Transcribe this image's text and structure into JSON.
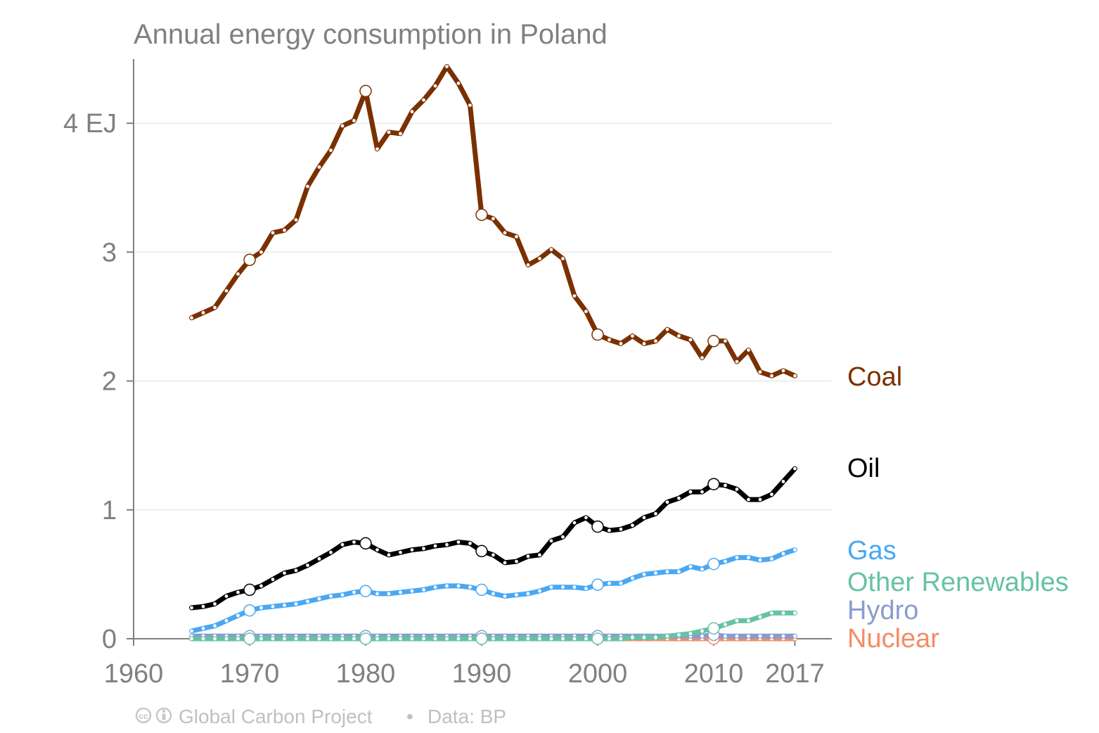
{
  "chart_data": {
    "type": "line",
    "title": "Annual energy consumption in Poland",
    "xlabel": "",
    "ylabel": "",
    "unit": "EJ",
    "xlim": [
      1960,
      2017
    ],
    "ylim": [
      0,
      4.5
    ],
    "x_ticks": [
      1960,
      1970,
      1980,
      1990,
      2000,
      2010,
      2017
    ],
    "x_tick_labels": [
      "1960",
      "1970",
      "1980",
      "1990",
      "2000",
      "2010",
      "2017"
    ],
    "y_ticks": [
      0,
      1,
      2,
      3,
      4
    ],
    "y_tick_labels": [
      "0",
      "1",
      "2",
      "3",
      "4 EJ"
    ],
    "grid": "horizontal",
    "legend": "right-end labels",
    "x": [
      1965,
      1966,
      1967,
      1968,
      1969,
      1970,
      1971,
      1972,
      1973,
      1974,
      1975,
      1976,
      1977,
      1978,
      1979,
      1980,
      1981,
      1982,
      1983,
      1984,
      1985,
      1986,
      1987,
      1988,
      1989,
      1990,
      1991,
      1992,
      1993,
      1994,
      1995,
      1996,
      1997,
      1998,
      1999,
      2000,
      2001,
      2002,
      2003,
      2004,
      2005,
      2006,
      2007,
      2008,
      2009,
      2010,
      2011,
      2012,
      2013,
      2014,
      2015,
      2016,
      2017
    ],
    "series": [
      {
        "name": "Coal",
        "color": "#7a3000",
        "values": [
          2.49,
          2.53,
          2.57,
          2.7,
          2.83,
          2.94,
          3.0,
          3.15,
          3.17,
          3.25,
          3.51,
          3.66,
          3.79,
          3.98,
          4.02,
          4.25,
          3.8,
          3.93,
          3.92,
          4.09,
          4.18,
          4.29,
          4.44,
          4.31,
          4.14,
          3.29,
          3.26,
          3.15,
          3.12,
          2.9,
          2.95,
          3.02,
          2.95,
          2.66,
          2.54,
          2.36,
          2.32,
          2.29,
          2.35,
          2.29,
          2.31,
          2.4,
          2.35,
          2.32,
          2.18,
          2.31,
          2.31,
          2.15,
          2.24,
          2.07,
          2.04,
          2.08,
          2.04
        ]
      },
      {
        "name": "Oil",
        "color": "#000000",
        "values": [
          0.24,
          0.25,
          0.27,
          0.33,
          0.36,
          0.38,
          0.41,
          0.46,
          0.51,
          0.53,
          0.57,
          0.62,
          0.67,
          0.73,
          0.75,
          0.74,
          0.69,
          0.65,
          0.67,
          0.69,
          0.7,
          0.72,
          0.73,
          0.75,
          0.74,
          0.68,
          0.65,
          0.59,
          0.6,
          0.64,
          0.65,
          0.76,
          0.79,
          0.9,
          0.94,
          0.87,
          0.84,
          0.85,
          0.88,
          0.94,
          0.97,
          1.06,
          1.09,
          1.14,
          1.14,
          1.2,
          1.19,
          1.16,
          1.08,
          1.08,
          1.12,
          1.22,
          1.32
        ]
      },
      {
        "name": "Gas",
        "color": "#4aa8f3",
        "values": [
          0.06,
          0.08,
          0.1,
          0.14,
          0.18,
          0.22,
          0.24,
          0.25,
          0.26,
          0.27,
          0.29,
          0.31,
          0.33,
          0.34,
          0.36,
          0.37,
          0.35,
          0.35,
          0.36,
          0.37,
          0.38,
          0.4,
          0.41,
          0.41,
          0.4,
          0.38,
          0.35,
          0.33,
          0.34,
          0.35,
          0.37,
          0.4,
          0.4,
          0.4,
          0.39,
          0.42,
          0.43,
          0.43,
          0.47,
          0.5,
          0.51,
          0.52,
          0.52,
          0.56,
          0.54,
          0.58,
          0.6,
          0.63,
          0.63,
          0.61,
          0.62,
          0.66,
          0.69
        ]
      },
      {
        "name": "Other Renewables",
        "color": "#66c2a4",
        "values": [
          0.0,
          0.0,
          0.0,
          0.0,
          0.0,
          0.0,
          0.0,
          0.0,
          0.0,
          0.0,
          0.0,
          0.0,
          0.0,
          0.0,
          0.0,
          0.0,
          0.0,
          0.0,
          0.0,
          0.0,
          0.0,
          0.0,
          0.0,
          0.0,
          0.0,
          0.0,
          0.0,
          0.0,
          0.0,
          0.0,
          0.0,
          0.0,
          0.0,
          0.0,
          0.0,
          0.0,
          0.0,
          0.0,
          0.01,
          0.01,
          0.01,
          0.02,
          0.03,
          0.04,
          0.06,
          0.08,
          0.11,
          0.14,
          0.14,
          0.17,
          0.2,
          0.2,
          0.2
        ]
      },
      {
        "name": "Hydro",
        "color": "#8a9bd0",
        "values": [
          0.02,
          0.02,
          0.02,
          0.02,
          0.02,
          0.02,
          0.02,
          0.02,
          0.02,
          0.02,
          0.02,
          0.02,
          0.02,
          0.02,
          0.02,
          0.02,
          0.02,
          0.02,
          0.02,
          0.02,
          0.02,
          0.02,
          0.02,
          0.02,
          0.02,
          0.02,
          0.02,
          0.02,
          0.02,
          0.02,
          0.02,
          0.02,
          0.02,
          0.02,
          0.02,
          0.02,
          0.02,
          0.02,
          0.02,
          0.02,
          0.02,
          0.02,
          0.02,
          0.02,
          0.02,
          0.03,
          0.02,
          0.02,
          0.02,
          0.02,
          0.02,
          0.02,
          0.02
        ]
      },
      {
        "name": "Nuclear",
        "color": "#f58b65",
        "values": [
          0,
          0,
          0,
          0,
          0,
          0,
          0,
          0,
          0,
          0,
          0,
          0,
          0,
          0,
          0,
          0,
          0,
          0,
          0,
          0,
          0,
          0,
          0,
          0,
          0,
          0,
          0,
          0,
          0,
          0,
          0,
          0,
          0,
          0,
          0,
          0,
          0,
          0,
          0,
          0,
          0,
          0,
          0,
          0,
          0,
          0,
          0,
          0,
          0,
          0,
          0,
          0,
          0
        ]
      }
    ],
    "end_labels": [
      {
        "text": "Coal",
        "color": "#7a3000"
      },
      {
        "text": "Oil",
        "color": "#000000"
      },
      {
        "text": "Gas",
        "color": "#4aa8f3"
      },
      {
        "text": "Other Renewables",
        "color": "#66c2a4"
      },
      {
        "text": "Hydro",
        "color": "#8a9bd0"
      },
      {
        "text": "Nuclear",
        "color": "#f58b65"
      }
    ]
  },
  "footer": {
    "credit": "Global Carbon Project",
    "separator": "•",
    "source": "Data: BP",
    "license_icons": [
      "cc-icon",
      "by-person-icon"
    ]
  }
}
